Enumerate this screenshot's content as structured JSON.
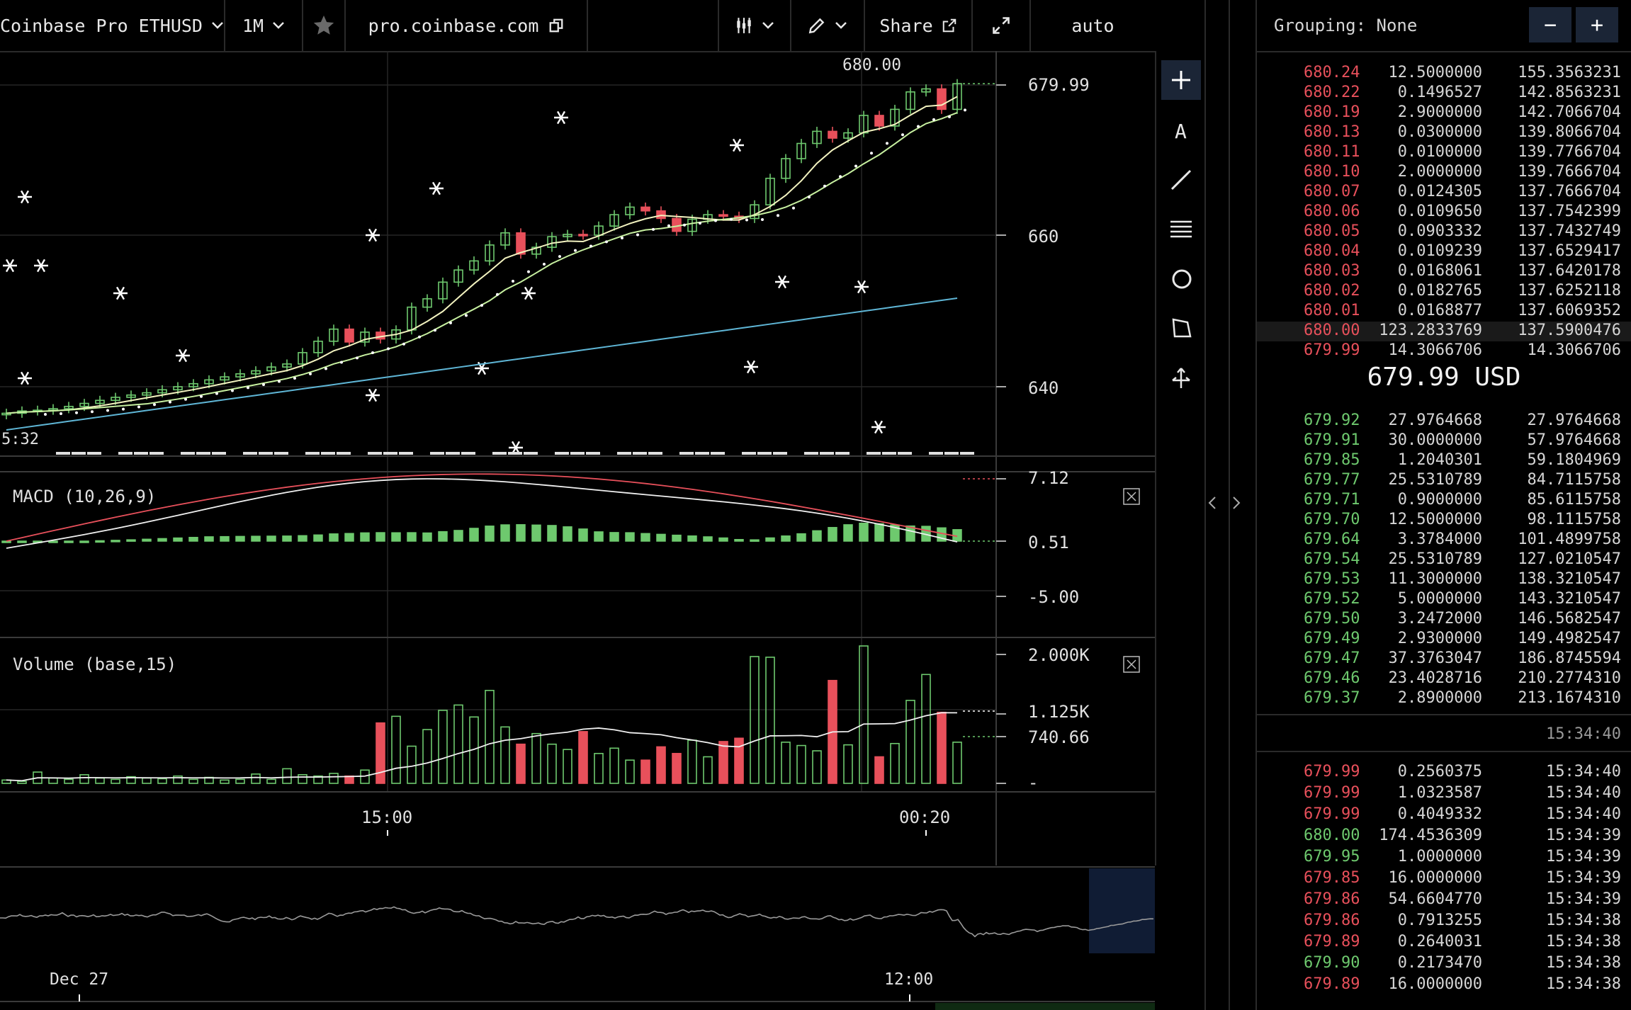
{
  "toolbar": {
    "product": "Coinbase Pro ETHUSD",
    "interval": "1M",
    "url": "pro.coinbase.com",
    "share": "Share",
    "scale": "auto"
  },
  "colors": {
    "up": "#6ec96e",
    "down": "#e8505b",
    "ma_fast": "#f3f3c0",
    "ma_mid": "#c7f0a0",
    "ma_slow": "#5fb6d6",
    "accent": "#1b2536"
  },
  "chart": {
    "price_axis": [
      "679.99",
      "660",
      "640"
    ],
    "high_label": "680.00",
    "left_label": "5:32",
    "macd_title": "MACD (10,26,9)",
    "macd_axis": [
      "7.12",
      "0.51",
      "-5.00"
    ],
    "volume_title": "Volume (base,15)",
    "volume_axis": [
      "2.000K",
      "1.125K",
      "740.66",
      "-"
    ],
    "time_axis": [
      "15:00",
      "00:20"
    ],
    "nav_axis": [
      "Dec 27",
      "12:00"
    ]
  },
  "chart_data": {
    "type": "candlestick",
    "title": "Coinbase Pro ETHUSD",
    "interval": "1M",
    "close": [
      636.5,
      636.8,
      636.9,
      637.1,
      637.4,
      637.8,
      638.2,
      638.6,
      638.9,
      639.2,
      639.6,
      640.0,
      640.4,
      640.9,
      641.3,
      641.7,
      642.1,
      642.6,
      643.0,
      644.5,
      646.0,
      647.6,
      645.9,
      647.2,
      646.3,
      647.5,
      650.5,
      651.6,
      653.8,
      655.4,
      656.6,
      658.7,
      660.3,
      657.5,
      658.4,
      659.8,
      660.1,
      660.0,
      661.2,
      662.7,
      663.7,
      663.2,
      662.2,
      660.5,
      662.1,
      662.7,
      662.5,
      662.2,
      664.0,
      667.5,
      670.1,
      672.1,
      673.7,
      672.8,
      673.5,
      675.8,
      674.4,
      676.6,
      678.9,
      679.3,
      676.6,
      679.99
    ],
    "volume": [
      50,
      30,
      170,
      80,
      60,
      130,
      80,
      60,
      100,
      80,
      70,
      110,
      60,
      90,
      50,
      60,
      140,
      60,
      220,
      130,
      110,
      150,
      110,
      200,
      910,
      1010,
      560,
      810,
      1100,
      1180,
      1000,
      1400,
      850,
      590,
      750,
      590,
      510,
      780,
      450,
      530,
      350,
      350,
      550,
      450,
      650,
      400,
      630,
      680,
      1910,
      1900,
      620,
      570,
      490,
      1550,
      580,
      2070,
      400,
      600,
      1250,
      1640,
      1070,
      620
    ],
    "moving_averages": [
      "fast",
      "mid",
      "slow"
    ],
    "macd": {
      "params": [
        10,
        26,
        9
      ],
      "latest": 7.12,
      "signal_ref": 0.51,
      "axis_low": -5.0
    },
    "price_axis_ticks": [
      679.99,
      660,
      640
    ],
    "volume_axis_ticks": [
      2000,
      1125,
      740.66
    ]
  },
  "book": {
    "grouping": "Grouping: None",
    "minus": "−",
    "plus": "+",
    "mid_price": "679.99 USD",
    "asks": [
      [
        "680.24",
        "12.5000000",
        "155.3563231"
      ],
      [
        "680.22",
        "0.1496527",
        "142.8563231"
      ],
      [
        "680.19",
        "2.9000000",
        "142.7066704"
      ],
      [
        "680.13",
        "0.0300000",
        "139.8066704"
      ],
      [
        "680.11",
        "0.0100000",
        "139.7766704"
      ],
      [
        "680.10",
        "2.0000000",
        "139.7666704"
      ],
      [
        "680.07",
        "0.0124305",
        "137.7666704"
      ],
      [
        "680.06",
        "0.0109650",
        "137.7542399"
      ],
      [
        "680.05",
        "0.0903332",
        "137.7432749"
      ],
      [
        "680.04",
        "0.0109239",
        "137.6529417"
      ],
      [
        "680.03",
        "0.0168061",
        "137.6420178"
      ],
      [
        "680.02",
        "0.0182765",
        "137.6252118"
      ],
      [
        "680.01",
        "0.0168877",
        "137.6069352"
      ],
      [
        "680.00",
        "123.2833769",
        "137.5900476"
      ],
      [
        "679.99",
        "14.3066706",
        "14.3066706"
      ]
    ],
    "bids": [
      [
        "679.92",
        "27.9764668",
        "27.9764668"
      ],
      [
        "679.91",
        "30.0000000",
        "57.9764668"
      ],
      [
        "679.85",
        "1.2040301",
        "59.1804969"
      ],
      [
        "679.77",
        "25.5310789",
        "84.7115758"
      ],
      [
        "679.71",
        "0.9000000",
        "85.6115758"
      ],
      [
        "679.70",
        "12.5000000",
        "98.1115758"
      ],
      [
        "679.64",
        "3.3784000",
        "101.4899758"
      ],
      [
        "679.54",
        "25.5310789",
        "127.0210547"
      ],
      [
        "679.53",
        "11.3000000",
        "138.3210547"
      ],
      [
        "679.52",
        "5.0000000",
        "143.3210547"
      ],
      [
        "679.50",
        "3.2472000",
        "146.5682547"
      ],
      [
        "679.49",
        "2.9300000",
        "149.4982547"
      ],
      [
        "679.47",
        "37.3763047",
        "186.8745594"
      ],
      [
        "679.46",
        "23.4028716",
        "210.2774310"
      ],
      [
        "679.37",
        "2.8900000",
        "213.1674310"
      ]
    ],
    "trades_time": "15:34:40",
    "trades": [
      [
        "679.99",
        "0.2560375",
        "15:34:40",
        "red"
      ],
      [
        "679.99",
        "1.0323587",
        "15:34:40",
        "red"
      ],
      [
        "679.99",
        "0.4049332",
        "15:34:40",
        "red"
      ],
      [
        "680.00",
        "174.4536309",
        "15:34:39",
        "green"
      ],
      [
        "679.95",
        "1.0000000",
        "15:34:39",
        "green"
      ],
      [
        "679.85",
        "16.0000000",
        "15:34:39",
        "red"
      ],
      [
        "679.86",
        "54.6604770",
        "15:34:39",
        "red"
      ],
      [
        "679.86",
        "0.7913255",
        "15:34:38",
        "red"
      ],
      [
        "679.89",
        "0.2640031",
        "15:34:38",
        "red"
      ],
      [
        "679.90",
        "0.2173470",
        "15:34:38",
        "green"
      ],
      [
        "679.89",
        "16.0000000",
        "15:34:38",
        "red"
      ]
    ]
  }
}
